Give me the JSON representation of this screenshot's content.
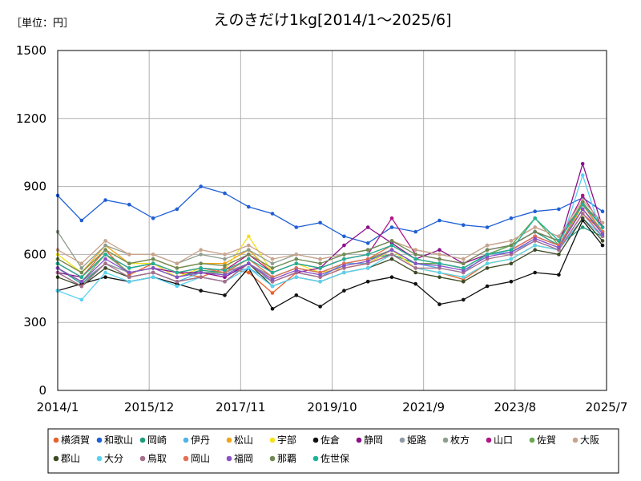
{
  "chart_data": {
    "type": "line",
    "unit_label": "［単位：円］",
    "title": "えのきだけ1kg[2014/1～2025/6]",
    "xlabel": "",
    "ylabel": "",
    "ylim": [
      0,
      1500
    ],
    "yticks": [
      "0",
      "300",
      "600",
      "900",
      "1200",
      "1500"
    ],
    "xlim": [
      "2014/1",
      "2025/7"
    ],
    "xticks": [
      "2014/1",
      "2015/12",
      "2017/11",
      "2019/10",
      "2021/9",
      "2023/8",
      "2025/7"
    ],
    "grid": true,
    "legend_position": "bottom",
    "x": [
      "2014/1",
      "2014/7",
      "2015/1",
      "2015/7",
      "2016/1",
      "2016/7",
      "2017/1",
      "2017/7",
      "2018/1",
      "2018/7",
      "2019/1",
      "2019/7",
      "2020/1",
      "2020/7",
      "2021/1",
      "2021/7",
      "2022/1",
      "2022/7",
      "2023/1",
      "2023/7",
      "2024/1",
      "2024/7",
      "2025/1",
      "2025/6"
    ],
    "series": [
      {
        "name": "横須賀",
        "color": "#e8612c",
        "values": [
          560,
          500,
          620,
          510,
          560,
          520,
          500,
          540,
          520,
          430,
          520,
          500,
          540,
          560,
          600,
          540,
          520,
          490,
          560,
          580,
          640,
          620,
          780,
          700
        ]
      },
      {
        "name": "和歌山",
        "color": "#1f5fd6",
        "values": [
          860,
          750,
          840,
          820,
          760,
          800,
          900,
          870,
          810,
          780,
          720,
          740,
          680,
          650,
          720,
          700,
          750,
          730,
          720,
          760,
          790,
          800,
          850,
          790
        ]
      },
      {
        "name": "岡崎",
        "color": "#1a9e7a",
        "values": [
          540,
          470,
          560,
          520,
          540,
          500,
          530,
          520,
          560,
          500,
          540,
          520,
          560,
          580,
          600,
          560,
          560,
          540,
          600,
          640,
          700,
          640,
          720,
          680
        ]
      },
      {
        "name": "伊丹",
        "color": "#4fb3e6",
        "values": [
          520,
          460,
          540,
          500,
          520,
          480,
          520,
          510,
          540,
          480,
          520,
          500,
          560,
          560,
          620,
          560,
          540,
          520,
          600,
          610,
          660,
          620,
          760,
          680
        ]
      },
      {
        "name": "松山",
        "color": "#f0a416",
        "values": [
          580,
          520,
          640,
          560,
          580,
          540,
          560,
          560,
          620,
          520,
          560,
          540,
          580,
          600,
          640,
          580,
          560,
          540,
          600,
          620,
          680,
          640,
          800,
          700
        ]
      },
      {
        "name": "宇部",
        "color": "#f4e020",
        "values": [
          600,
          520,
          620,
          560,
          560,
          500,
          540,
          530,
          680,
          520,
          560,
          520,
          540,
          560,
          620,
          540,
          520,
          500,
          560,
          580,
          640,
          620,
          820,
          700
        ]
      },
      {
        "name": "佐倉",
        "color": "#111111",
        "values": [
          440,
          470,
          500,
          480,
          500,
          470,
          440,
          420,
          540,
          360,
          420,
          370,
          440,
          480,
          500,
          470,
          380,
          400,
          460,
          480,
          520,
          510,
          750,
          640
        ]
      },
      {
        "name": "静岡",
        "color": "#8b0f8b",
        "values": [
          520,
          500,
          600,
          520,
          540,
          520,
          520,
          500,
          560,
          480,
          520,
          540,
          640,
          720,
          650,
          580,
          620,
          560,
          600,
          620,
          680,
          640,
          1000,
          720
        ]
      },
      {
        "name": "姫路",
        "color": "#8f9aa6",
        "values": [
          540,
          480,
          560,
          520,
          540,
          500,
          520,
          520,
          560,
          500,
          540,
          520,
          560,
          580,
          620,
          560,
          560,
          540,
          600,
          620,
          680,
          640,
          800,
          700
        ]
      },
      {
        "name": "枚方",
        "color": "#8e9e8e",
        "values": [
          700,
          540,
          640,
          600,
          600,
          560,
          600,
          580,
          620,
          560,
          600,
          580,
          600,
          620,
          660,
          620,
          600,
          580,
          640,
          660,
          720,
          680,
          820,
          740
        ]
      },
      {
        "name": "山口",
        "color": "#b01686",
        "values": [
          560,
          500,
          600,
          540,
          560,
          520,
          540,
          530,
          600,
          520,
          560,
          540,
          580,
          600,
          760,
          600,
          580,
          560,
          620,
          640,
          700,
          660,
          860,
          720
        ]
      },
      {
        "name": "佐賀",
        "color": "#6aa84f",
        "values": [
          540,
          480,
          600,
          520,
          540,
          500,
          520,
          520,
          580,
          500,
          540,
          520,
          560,
          580,
          620,
          560,
          560,
          540,
          600,
          640,
          760,
          640,
          800,
          700
        ]
      },
      {
        "name": "大阪",
        "color": "#c9a38c",
        "values": [
          620,
          560,
          660,
          600,
          600,
          560,
          620,
          600,
          640,
          580,
          600,
          580,
          600,
          620,
          660,
          620,
          600,
          580,
          640,
          660,
          720,
          680,
          840,
          740
        ]
      },
      {
        "name": "郡山",
        "color": "#3d4a24",
        "values": [
          500,
          460,
          540,
          500,
          520,
          480,
          500,
          480,
          560,
          460,
          500,
          480,
          520,
          540,
          580,
          520,
          500,
          480,
          540,
          560,
          620,
          600,
          760,
          660
        ]
      },
      {
        "name": "大分",
        "color": "#5ad2f2",
        "values": [
          440,
          400,
          520,
          480,
          500,
          460,
          500,
          480,
          540,
          460,
          500,
          480,
          520,
          540,
          600,
          540,
          520,
          500,
          560,
          580,
          640,
          620,
          950,
          680
        ]
      },
      {
        "name": "鳥取",
        "color": "#a86e8c",
        "values": [
          520,
          460,
          560,
          500,
          520,
          480,
          500,
          480,
          560,
          480,
          520,
          500,
          540,
          560,
          600,
          540,
          540,
          520,
          580,
          600,
          660,
          620,
          780,
          680
        ]
      },
      {
        "name": "岡山",
        "color": "#e46f55",
        "values": [
          560,
          500,
          600,
          540,
          560,
          520,
          540,
          520,
          580,
          500,
          540,
          520,
          560,
          580,
          640,
          580,
          560,
          540,
          600,
          620,
          680,
          640,
          820,
          700
        ]
      },
      {
        "name": "福岡",
        "color": "#8a52c8",
        "values": [
          540,
          480,
          580,
          520,
          540,
          500,
          520,
          510,
          560,
          490,
          530,
          510,
          550,
          570,
          620,
          560,
          550,
          530,
          590,
          610,
          670,
          630,
          800,
          690
        ]
      },
      {
        "name": "那覇",
        "color": "#6f8a55",
        "values": [
          580,
          520,
          620,
          560,
          580,
          540,
          560,
          550,
          600,
          540,
          580,
          560,
          600,
          620,
          660,
          600,
          580,
          560,
          620,
          640,
          700,
          660,
          830,
          720
        ]
      },
      {
        "name": "佐世保",
        "color": "#1db39a",
        "values": [
          560,
          500,
          600,
          540,
          560,
          520,
          540,
          530,
          580,
          520,
          560,
          540,
          580,
          600,
          640,
          580,
          560,
          540,
          600,
          620,
          760,
          660,
          820,
          720
        ]
      }
    ]
  }
}
